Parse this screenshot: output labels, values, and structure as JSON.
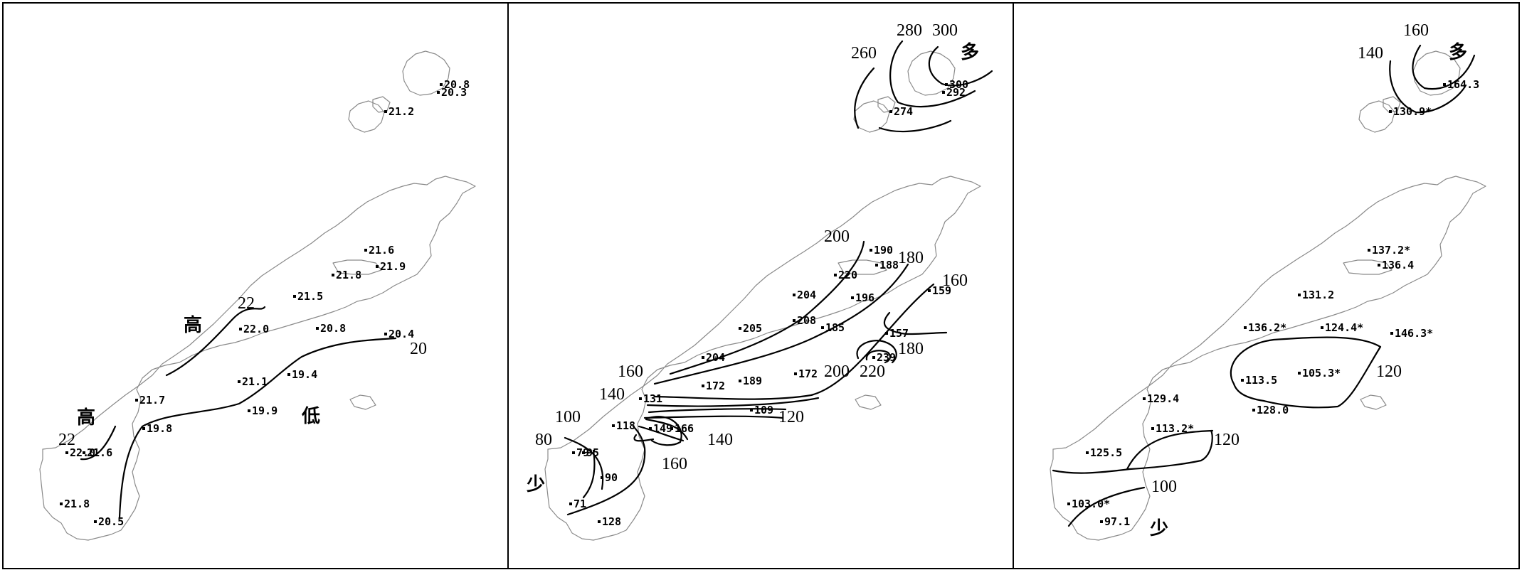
{
  "panels": [
    {
      "id": "temperature",
      "stations": [
        {
          "value": "20.8"
        },
        {
          "value": "20.3"
        },
        {
          "value": "21.2"
        },
        {
          "value": "21.6"
        },
        {
          "value": "21.9"
        },
        {
          "value": "21.8"
        },
        {
          "value": "21.5"
        },
        {
          "value": "22.0"
        },
        {
          "value": "20.8"
        },
        {
          "value": "20.4"
        },
        {
          "value": "21.1"
        },
        {
          "value": "19.4"
        },
        {
          "value": "21.7"
        },
        {
          "value": "19.9"
        },
        {
          "value": "19.8"
        },
        {
          "value": "22.0"
        },
        {
          "value": "21.6"
        },
        {
          "value": "21.8"
        },
        {
          "value": "20.5"
        }
      ],
      "contour_labels": [
        "22",
        "20",
        "22"
      ],
      "region_labels": [
        "高",
        "高",
        "低"
      ]
    },
    {
      "id": "precipitation",
      "stations": [
        {
          "value": "300"
        },
        {
          "value": "292"
        },
        {
          "value": "274"
        },
        {
          "value": "190"
        },
        {
          "value": "188"
        },
        {
          "value": "220"
        },
        {
          "value": "159"
        },
        {
          "value": "204"
        },
        {
          "value": "196"
        },
        {
          "value": "208"
        },
        {
          "value": "205"
        },
        {
          "value": "185"
        },
        {
          "value": "157"
        },
        {
          "value": "239"
        },
        {
          "value": "204"
        },
        {
          "value": "172"
        },
        {
          "value": "189"
        },
        {
          "value": "172"
        },
        {
          "value": "131"
        },
        {
          "value": "109"
        },
        {
          "value": "118"
        },
        {
          "value": "149"
        },
        {
          "value": "166"
        },
        {
          "value": "79"
        },
        {
          "value": "95"
        },
        {
          "value": "90"
        },
        {
          "value": "71"
        },
        {
          "value": "128"
        }
      ],
      "contour_labels": [
        "260",
        "280",
        "300",
        "200",
        "180",
        "160",
        "180",
        "200",
        "220",
        "160",
        "140",
        "120",
        "100",
        "80",
        "140",
        "160"
      ],
      "region_labels": [
        "多",
        "少"
      ]
    },
    {
      "id": "sunshine",
      "stations": [
        {
          "value": "164.3"
        },
        {
          "value": "130.9*"
        },
        {
          "value": "137.2*"
        },
        {
          "value": "136.4"
        },
        {
          "value": "131.2"
        },
        {
          "value": "136.2*"
        },
        {
          "value": "124.4*"
        },
        {
          "value": "146.3*"
        },
        {
          "value": "113.5"
        },
        {
          "value": "105.3*"
        },
        {
          "value": "129.4"
        },
        {
          "value": "128.0"
        },
        {
          "value": "113.2*"
        },
        {
          "value": "125.5"
        },
        {
          "value": "103.0*"
        },
        {
          "value": "97.1"
        }
      ],
      "contour_labels": [
        "160",
        "140",
        "120",
        "120",
        "100"
      ],
      "region_labels": [
        "多",
        "少"
      ]
    }
  ]
}
